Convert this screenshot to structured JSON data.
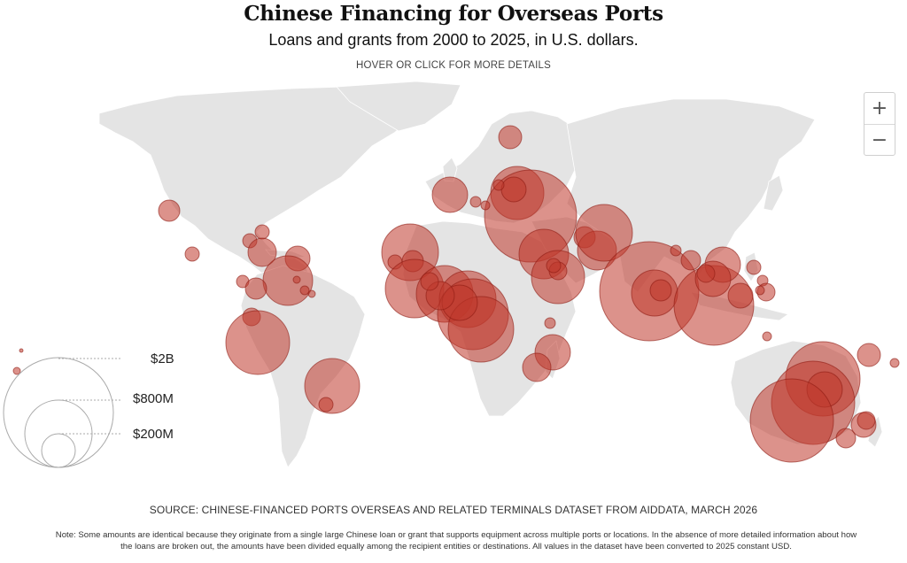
{
  "header": {
    "title": "Chinese Financing for Overseas Ports",
    "subtitle": "Loans and grants from 2000 to 2025, in U.S. dollars.",
    "hint": "HOVER OR CLICK FOR MORE DETAILS"
  },
  "zoom": {
    "in_label": "+",
    "out_label": "−"
  },
  "legend": {
    "labels": [
      "$2B",
      "$800M",
      "$200M"
    ]
  },
  "colors": {
    "land": "#e4e4e4",
    "bubble_fill": "#c0392b",
    "bubble_stroke": "#8e1b12",
    "legend_stroke": "#aaaaaa"
  },
  "footer": {
    "source": "SOURCE: CHINESE-FINANCED PORTS OVERSEAS AND RELATED TERMINALS DATASET FROM AIDDATA, MARCH 2026",
    "note": "Note: Some amounts are identical because they originate from a single large Chinese loan or grant that supports equipment across multiple ports or locations. In the absence of more detailed information about how the loans are broken out, the amounts have been divided equally among the recipient entities or destinations. All values in the dataset have been converted to 2025 constant USD."
  }
}
